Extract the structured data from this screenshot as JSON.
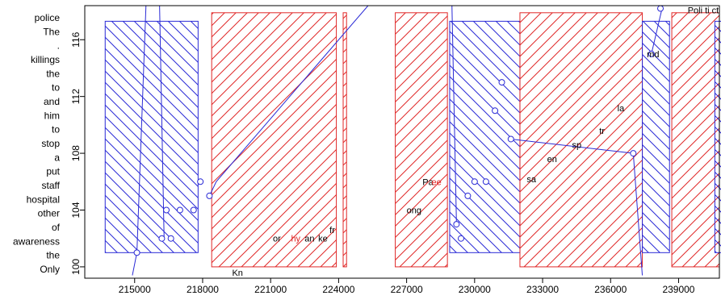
{
  "chart_data": {
    "type": "scatter",
    "title": "",
    "xlabel": "",
    "ylabel": "",
    "xlim": [
      212800,
      240800
    ],
    "ylim": [
      99.2,
      118.4
    ],
    "x_ticks": [
      215000,
      218000,
      221000,
      224000,
      227000,
      230000,
      233000,
      236000,
      239000
    ],
    "y_ticks": [
      100,
      104,
      108,
      112,
      116
    ],
    "grid": false,
    "y_side_labels": [
      "police",
      "The",
      ".",
      "killings",
      "the",
      "to",
      "and",
      "him",
      "to",
      "stop",
      "a",
      "put",
      "staff",
      "hospital",
      "other",
      "of",
      "awareness",
      "the",
      "Only"
    ],
    "rects": [
      {
        "x0": 213700,
        "x1": 217800,
        "y0": 101,
        "y1": 117.3,
        "color": "#2a2ad6",
        "hatch": "down"
      },
      {
        "x0": 218400,
        "x1": 223900,
        "y0": 100,
        "y1": 117.9,
        "color": "#e02828",
        "hatch": "up"
      },
      {
        "x0": 224200,
        "x1": 224350,
        "y0": 100,
        "y1": 117.9,
        "color": "#e02828",
        "hatch": "up"
      },
      {
        "x0": 226500,
        "x1": 228800,
        "y0": 100,
        "y1": 117.9,
        "color": "#e02828",
        "hatch": "up"
      },
      {
        "x0": 228900,
        "x1": 232000,
        "y0": 101,
        "y1": 117.3,
        "color": "#2a2ad6",
        "hatch": "down"
      },
      {
        "x0": 232000,
        "x1": 237400,
        "y0": 100,
        "y1": 117.9,
        "color": "#e02828",
        "hatch": "up"
      },
      {
        "x0": 237400,
        "x1": 238600,
        "y0": 101,
        "y1": 117.3,
        "color": "#2a2ad6",
        "hatch": "down"
      },
      {
        "x0": 238700,
        "x1": 240800,
        "y0": 100,
        "y1": 117.9,
        "color": "#e02828",
        "hatch": "up"
      },
      {
        "x0": 240600,
        "x1": 241600,
        "y0": 101,
        "y1": 117.3,
        "color": "#2a2ad6",
        "hatch": "down"
      }
    ],
    "series": [
      {
        "color": "#2a2ad6",
        "points": [
          [
            215100,
            101
          ],
          [
            216200,
            102
          ],
          [
            216400,
            104
          ],
          [
            216600,
            102
          ],
          [
            217000,
            104
          ],
          [
            217600,
            104
          ],
          [
            217900,
            106
          ],
          [
            218300,
            105
          ],
          [
            229200,
            103
          ],
          [
            229400,
            102
          ],
          [
            229700,
            105
          ],
          [
            230000,
            106
          ],
          [
            230500,
            106
          ],
          [
            230900,
            111
          ],
          [
            231200,
            113
          ],
          [
            231600,
            109
          ],
          [
            237000,
            108
          ],
          [
            237800,
            115
          ],
          [
            238200,
            118.2
          ]
        ]
      }
    ],
    "lines": [
      {
        "color": "#2a2ad6",
        "points": [
          [
            214900,
            99.4
          ],
          [
            215100,
            101
          ],
          [
            215500,
            118.4
          ]
        ]
      },
      {
        "color": "#2a2ad6",
        "points": [
          [
            216100,
            118.4
          ],
          [
            216300,
            102
          ]
        ]
      },
      {
        "color": "#2a2ad6",
        "points": [
          [
            218300,
            105
          ],
          [
            218600,
            106
          ],
          [
            225300,
            118.4
          ]
        ]
      },
      {
        "color": "#2a2ad6",
        "points": [
          [
            229000,
            118.4
          ],
          [
            229200,
            103
          ]
        ]
      },
      {
        "color": "#2a2ad6",
        "points": [
          [
            231600,
            109
          ],
          [
            237000,
            108
          ],
          [
            237400,
            99.4
          ]
        ]
      },
      {
        "color": "#2a2ad6",
        "points": [
          [
            237800,
            115
          ],
          [
            238300,
            118.4
          ]
        ]
      }
    ],
    "annotations": [
      {
        "text": "Kn",
        "x": 219300,
        "y": 99.6,
        "color": "#000"
      },
      {
        "text": "or",
        "x": 221100,
        "y": 102,
        "color": "#000"
      },
      {
        "text": "hy",
        "x": 221900,
        "y": 102,
        "color": "#e02828"
      },
      {
        "text": "an",
        "x": 222500,
        "y": 102,
        "color": "#000"
      },
      {
        "text": "ke",
        "x": 223100,
        "y": 102,
        "color": "#000"
      },
      {
        "text": "fr",
        "x": 223600,
        "y": 102.6,
        "color": "#000"
      },
      {
        "text": "ong",
        "x": 227000,
        "y": 104,
        "color": "#000"
      },
      {
        "text": "Pa",
        "x": 227700,
        "y": 106,
        "color": "#000"
      },
      {
        "text": "ee",
        "x": 228100,
        "y": 106,
        "color": "#e02828"
      },
      {
        "text": "sa",
        "x": 232300,
        "y": 106.2,
        "color": "#000"
      },
      {
        "text": "en",
        "x": 233200,
        "y": 107.6,
        "color": "#000"
      },
      {
        "text": "sp",
        "x": 234300,
        "y": 108.6,
        "color": "#000"
      },
      {
        "text": "tr",
        "x": 235500,
        "y": 109.6,
        "color": "#000"
      },
      {
        "text": "la",
        "x": 236300,
        "y": 111.2,
        "color": "#000"
      },
      {
        "text": "md",
        "x": 237600,
        "y": 115,
        "color": "#000"
      },
      {
        "text": "Poli ti ct",
        "x": 239400,
        "y": 118.1,
        "color": "#000"
      }
    ]
  }
}
